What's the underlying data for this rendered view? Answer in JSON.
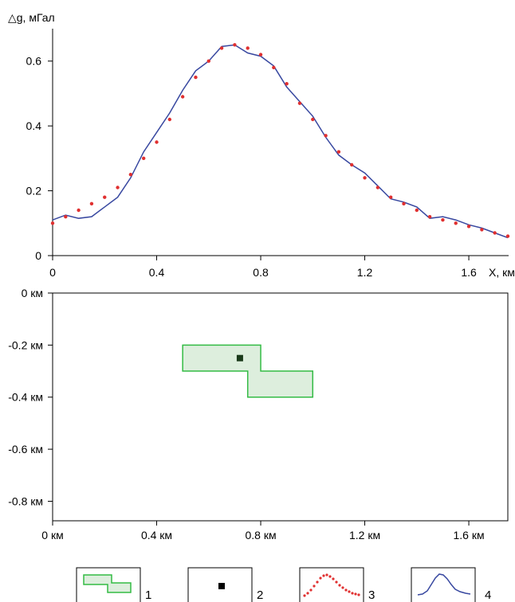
{
  "chart_data": [
    {
      "type": "line",
      "ylabel": "△g, мГал",
      "xlabel": "X, км",
      "xlim": [
        0,
        1.75
      ],
      "ylim": [
        0,
        0.7
      ],
      "x_ticks": [
        "0",
        "0.4",
        "0.8",
        "1.2",
        "1.6"
      ],
      "y_ticks": [
        "0",
        "0.2",
        "0.4",
        "0.6"
      ],
      "grid": false,
      "series": [
        {
          "style": "line",
          "color": "#3848a0",
          "x": [
            0,
            0.05,
            0.1,
            0.15,
            0.2,
            0.25,
            0.3,
            0.35,
            0.4,
            0.45,
            0.5,
            0.55,
            0.6,
            0.65,
            0.7,
            0.75,
            0.8,
            0.85,
            0.9,
            0.95,
            1.0,
            1.05,
            1.1,
            1.15,
            1.2,
            1.25,
            1.3,
            1.35,
            1.4,
            1.45,
            1.5,
            1.55,
            1.6,
            1.65,
            1.7,
            1.75
          ],
          "y": [
            0.11,
            0.125,
            0.115,
            0.12,
            0.15,
            0.18,
            0.24,
            0.32,
            0.38,
            0.44,
            0.51,
            0.57,
            0.6,
            0.645,
            0.65,
            0.625,
            0.615,
            0.585,
            0.52,
            0.475,
            0.43,
            0.365,
            0.31,
            0.28,
            0.255,
            0.215,
            0.175,
            0.165,
            0.15,
            0.115,
            0.12,
            0.11,
            0.095,
            0.085,
            0.07,
            0.055
          ]
        },
        {
          "style": "points",
          "color": "#e03030",
          "x": [
            0,
            0.05,
            0.1,
            0.15,
            0.2,
            0.25,
            0.3,
            0.35,
            0.4,
            0.45,
            0.5,
            0.55,
            0.6,
            0.65,
            0.7,
            0.75,
            0.8,
            0.85,
            0.9,
            0.95,
            1.0,
            1.05,
            1.1,
            1.15,
            1.2,
            1.25,
            1.3,
            1.35,
            1.4,
            1.45,
            1.5,
            1.55,
            1.6,
            1.65,
            1.7,
            1.75
          ],
          "y": [
            0.1,
            0.12,
            0.14,
            0.16,
            0.18,
            0.21,
            0.25,
            0.3,
            0.35,
            0.42,
            0.49,
            0.55,
            0.6,
            0.64,
            0.65,
            0.64,
            0.62,
            0.58,
            0.53,
            0.47,
            0.42,
            0.37,
            0.32,
            0.28,
            0.24,
            0.21,
            0.18,
            0.16,
            0.14,
            0.12,
            0.11,
            0.1,
            0.09,
            0.08,
            0.07,
            0.06
          ]
        }
      ]
    },
    {
      "type": "diagram",
      "xlim": [
        0,
        1.75
      ],
      "ylim": [
        -0.875,
        0
      ],
      "x_ticks": [
        "0 км",
        "0.4 км",
        "0.8 км",
        "1.2 км",
        "1.6 км"
      ],
      "y_ticks": [
        "0 км",
        "-0.2 км",
        "-0.4 км",
        "-0.6 км",
        "-0.8 км"
      ],
      "body_polygon": [
        [
          0.5,
          -0.2
        ],
        [
          0.8,
          -0.2
        ],
        [
          0.8,
          -0.3
        ],
        [
          1.0,
          -0.3
        ],
        [
          1.0,
          -0.4
        ],
        [
          0.75,
          -0.4
        ],
        [
          0.75,
          -0.3
        ],
        [
          0.5,
          -0.3
        ]
      ],
      "body_fill": "#ddeedd",
      "body_stroke": "#33bb44",
      "point": [
        0.72,
        -0.25
      ],
      "point_color": "#1a3a1a"
    }
  ],
  "legend": [
    {
      "icon": "body-polygon-icon",
      "label": "1"
    },
    {
      "icon": "point-source-icon",
      "label": "2"
    },
    {
      "icon": "observed-points-icon",
      "label": "3"
    },
    {
      "icon": "model-curve-icon",
      "label": "4"
    }
  ]
}
